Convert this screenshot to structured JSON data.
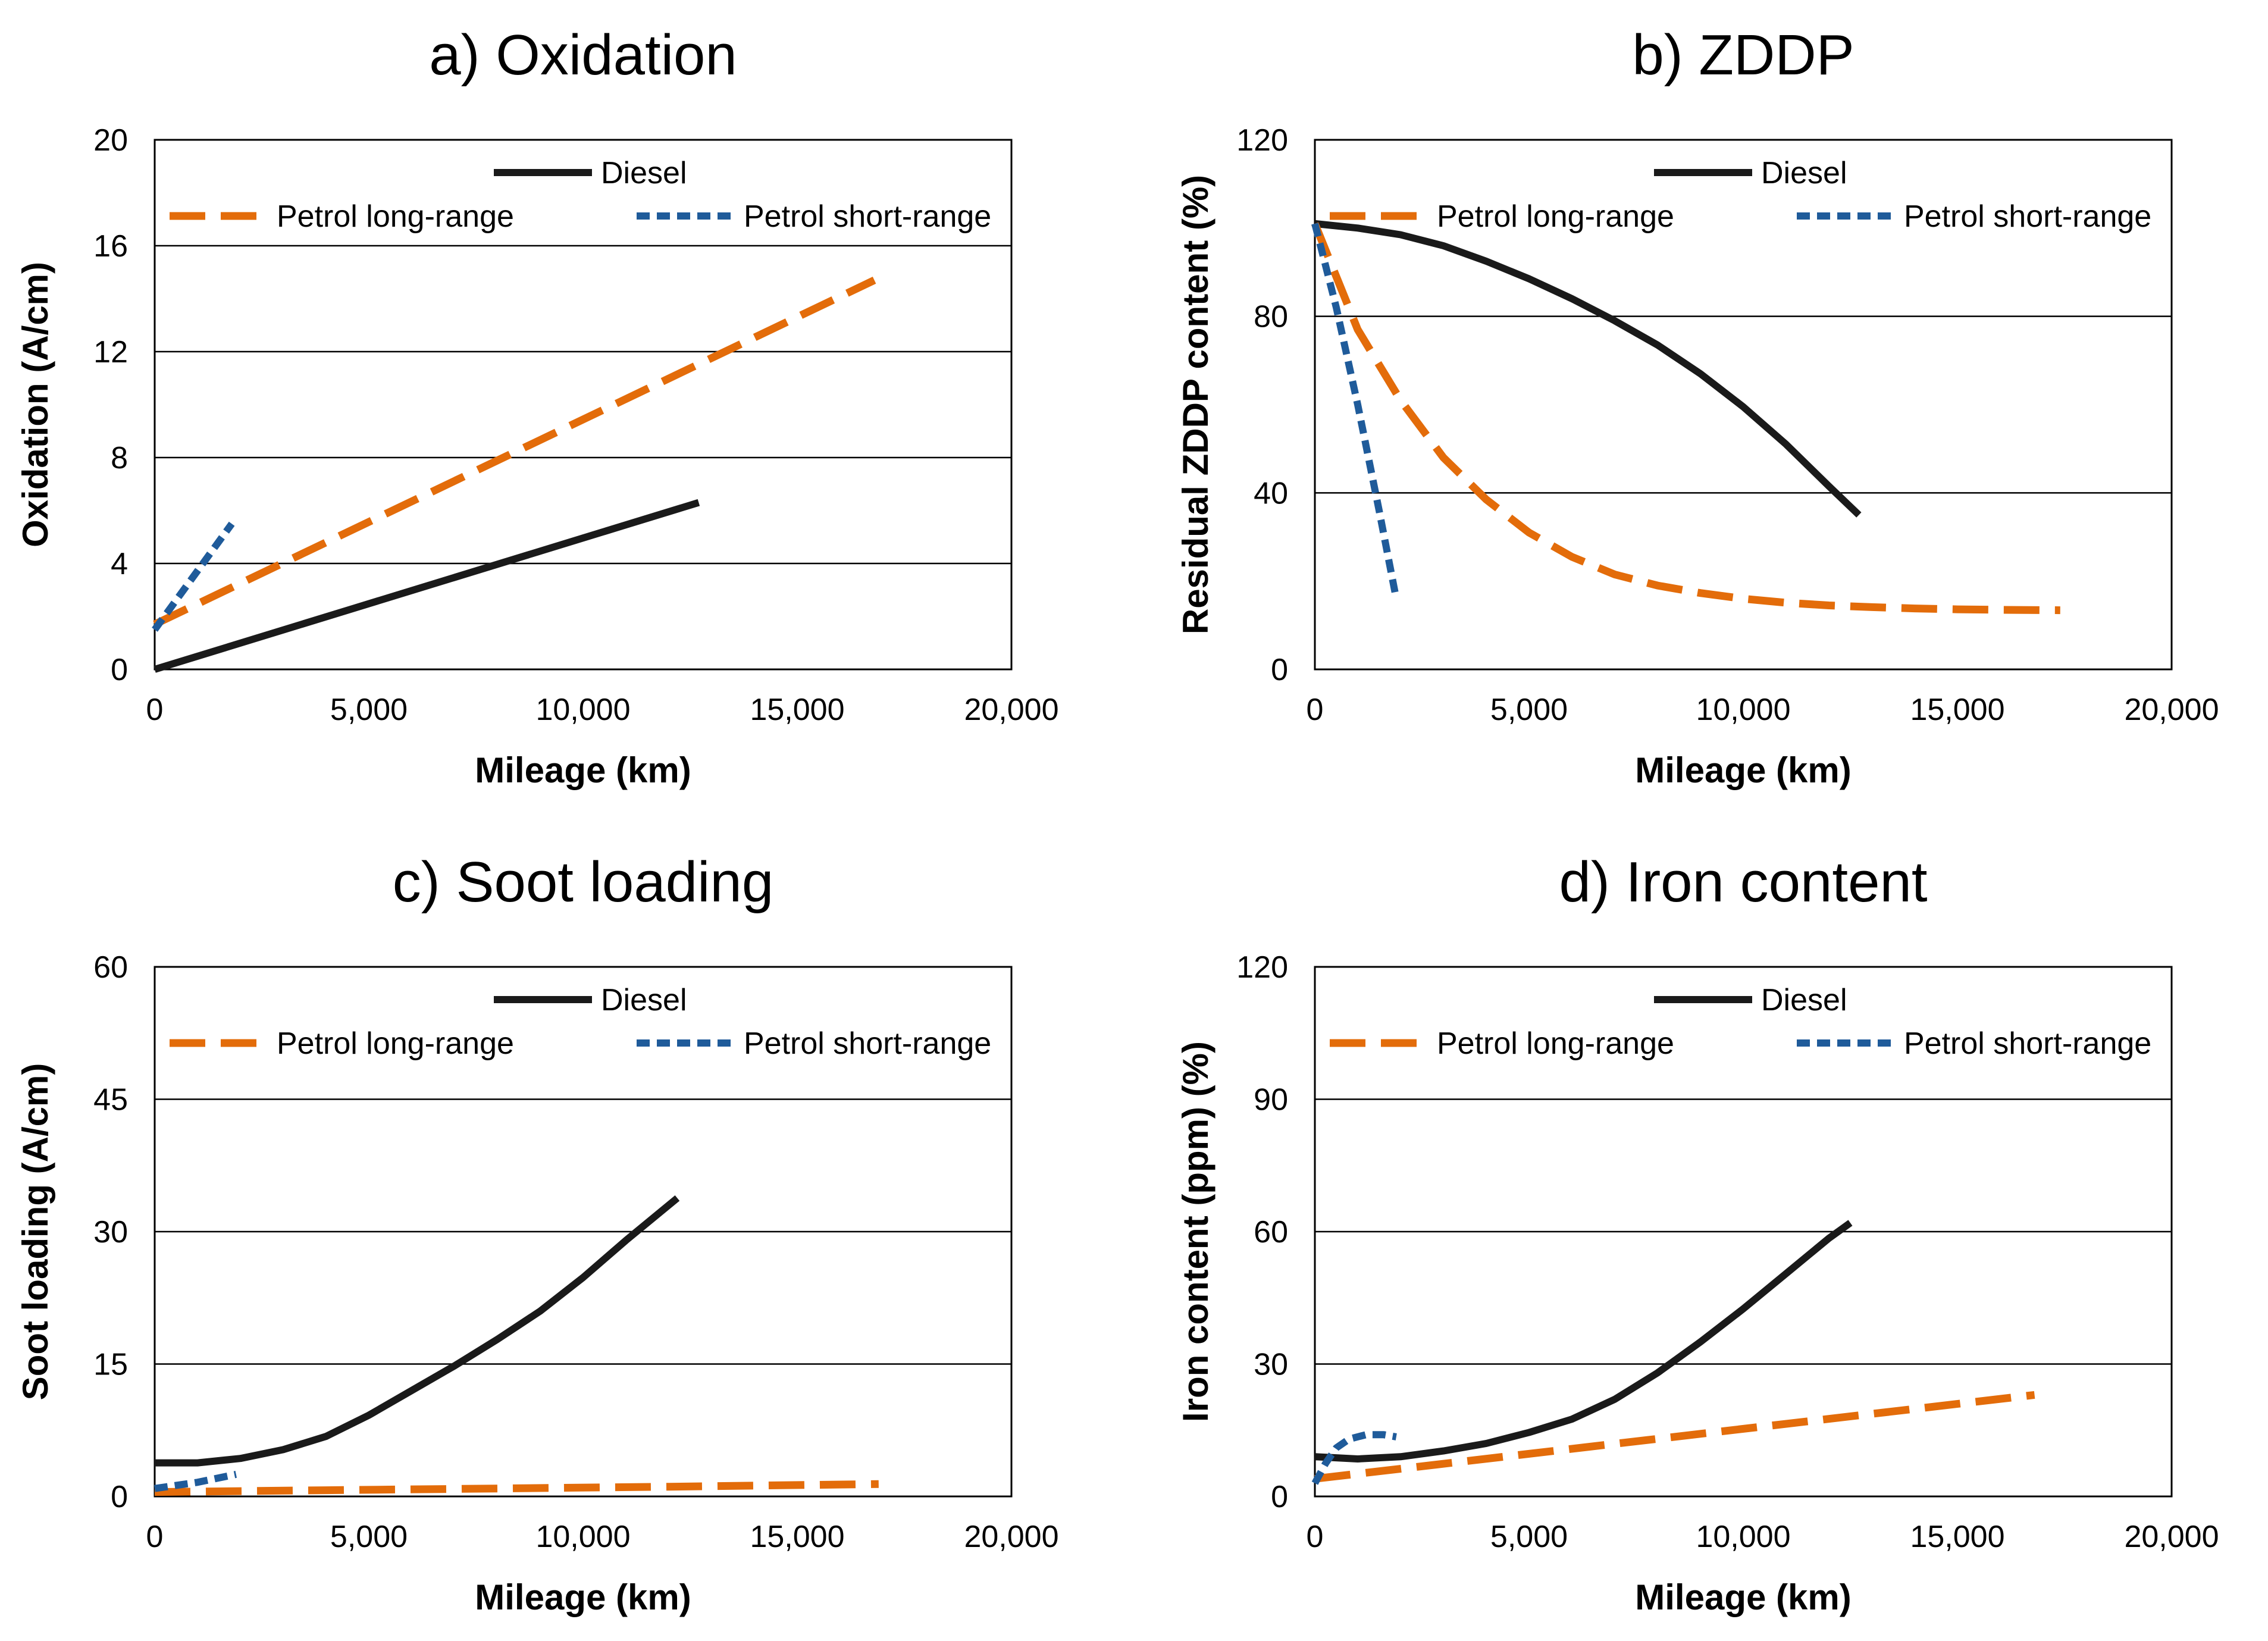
{
  "colors": {
    "diesel": "#1a1a1a",
    "petrol_long": "#e36c0a",
    "petrol_short": "#1f5b9a",
    "grid": "#000000"
  },
  "chart_data": [
    {
      "type": "line",
      "title": "a) Oxidation",
      "xlabel": "Mileage (km)",
      "ylabel": "Oxidation (A/cm)",
      "xlim": [
        0,
        20000
      ],
      "ylim": [
        0,
        20
      ],
      "xticks": [
        0,
        5000,
        10000,
        15000,
        20000
      ],
      "xtick_labels": [
        "0",
        "5,000",
        "10,000",
        "15,000",
        "20,000"
      ],
      "yticks": [
        0,
        4,
        8,
        12,
        16,
        20
      ],
      "ytick_labels": [
        "0",
        "4",
        "8",
        "12",
        "16",
        "20"
      ],
      "grid": "horizontal",
      "series": [
        {
          "name": "Diesel",
          "style": "solid",
          "x": [
            0,
            12700
          ],
          "y": [
            0,
            6.3
          ]
        },
        {
          "name": "Petrol long-range",
          "style": "long-dash",
          "x": [
            0,
            16800
          ],
          "y": [
            1.7,
            14.7
          ]
        },
        {
          "name": "Petrol short-range",
          "style": "short-dash",
          "x": [
            0,
            1800
          ],
          "y": [
            1.5,
            5.5
          ]
        }
      ]
    },
    {
      "type": "line",
      "title": "b) ZDDP",
      "xlabel": "Mileage (km)",
      "ylabel": "Residual ZDDP content (%)",
      "xlim": [
        0,
        20000
      ],
      "ylim": [
        0,
        120
      ],
      "xticks": [
        0,
        5000,
        10000,
        15000,
        20000
      ],
      "xtick_labels": [
        "0",
        "5,000",
        "10,000",
        "15,000",
        "20,000"
      ],
      "yticks": [
        0,
        40,
        80,
        120
      ],
      "ytick_labels": [
        "0",
        "40",
        "80",
        "120"
      ],
      "grid": "horizontal",
      "series": [
        {
          "name": "Diesel",
          "style": "solid",
          "x": [
            0,
            1000,
            2000,
            3000,
            4000,
            5000,
            6000,
            7000,
            8000,
            9000,
            10000,
            11000,
            12000,
            12700
          ],
          "y": [
            101,
            100,
            98.5,
            96,
            92.5,
            88.5,
            84,
            79,
            73.5,
            67,
            59.5,
            51,
            41.5,
            35
          ]
        },
        {
          "name": "Petrol long-range",
          "style": "long-dash",
          "x": [
            0,
            1000,
            2000,
            3000,
            4000,
            5000,
            6000,
            7000,
            8000,
            9000,
            10000,
            11000,
            12000,
            13000,
            14000,
            15000,
            16000,
            17400
          ],
          "y": [
            101,
            77,
            61,
            48,
            38.5,
            31,
            25.5,
            21.5,
            19,
            17.3,
            16,
            15.1,
            14.5,
            14.1,
            13.8,
            13.6,
            13.5,
            13.4
          ]
        },
        {
          "name": "Petrol short-range",
          "style": "short-dash",
          "x": [
            0,
            500,
            1000,
            1500,
            1900
          ],
          "y": [
            101,
            82,
            60,
            36,
            16
          ]
        }
      ]
    },
    {
      "type": "line",
      "title": "c) Soot loading",
      "xlabel": "Mileage (km)",
      "ylabel": "Soot loading (A/cm)",
      "xlim": [
        0,
        20000
      ],
      "ylim": [
        0,
        60
      ],
      "xticks": [
        0,
        5000,
        10000,
        15000,
        20000
      ],
      "xtick_labels": [
        "0",
        "5,000",
        "10,000",
        "15,000",
        "20,000"
      ],
      "yticks": [
        0,
        15,
        30,
        45,
        60
      ],
      "ytick_labels": [
        "0",
        "15",
        "30",
        "45",
        "60"
      ],
      "grid": "horizontal",
      "series": [
        {
          "name": "Diesel",
          "style": "solid",
          "x": [
            0,
            1000,
            2000,
            3000,
            4000,
            5000,
            6000,
            7000,
            8000,
            9000,
            10000,
            11000,
            12200
          ],
          "y": [
            3.8,
            3.8,
            4.3,
            5.3,
            6.8,
            9.2,
            12,
            14.8,
            17.8,
            21,
            24.8,
            29,
            33.8
          ]
        },
        {
          "name": "Petrol long-range",
          "style": "long-dash",
          "x": [
            0,
            4000,
            8000,
            12000,
            16900
          ],
          "y": [
            0.5,
            0.7,
            0.9,
            1.1,
            1.4
          ]
        },
        {
          "name": "Petrol short-range",
          "style": "short-dash",
          "x": [
            0,
            1000,
            1900
          ],
          "y": [
            0.9,
            1.6,
            2.5
          ]
        }
      ]
    },
    {
      "type": "line",
      "title": "d) Iron content",
      "xlabel": "Mileage (km)",
      "ylabel": "Iron content (ppm) (%)",
      "xlim": [
        0,
        20000
      ],
      "ylim": [
        0,
        120
      ],
      "xticks": [
        0,
        5000,
        10000,
        15000,
        20000
      ],
      "xtick_labels": [
        "0",
        "5,000",
        "10,000",
        "15,000",
        "20,000"
      ],
      "yticks": [
        0,
        30,
        60,
        90,
        120
      ],
      "ytick_labels": [
        "0",
        "30",
        "60",
        "90",
        "120"
      ],
      "grid": "horizontal",
      "series": [
        {
          "name": "Diesel",
          "style": "solid",
          "x": [
            0,
            1000,
            2000,
            3000,
            4000,
            5000,
            6000,
            7000,
            8000,
            9000,
            10000,
            11000,
            12000,
            12500
          ],
          "y": [
            9,
            8.5,
            9,
            10.3,
            12,
            14.5,
            17.5,
            22,
            28,
            35,
            42.5,
            50.5,
            58.5,
            62
          ]
        },
        {
          "name": "Petrol long-range",
          "style": "long-dash",
          "x": [
            0,
            16800
          ],
          "y": [
            4,
            23
          ]
        },
        {
          "name": "Petrol short-range",
          "style": "short-dash",
          "x": [
            0,
            250,
            500,
            800,
            1200,
            1600,
            1900
          ],
          "y": [
            3,
            7.5,
            11,
            13,
            14,
            14,
            13.5
          ]
        }
      ]
    }
  ]
}
